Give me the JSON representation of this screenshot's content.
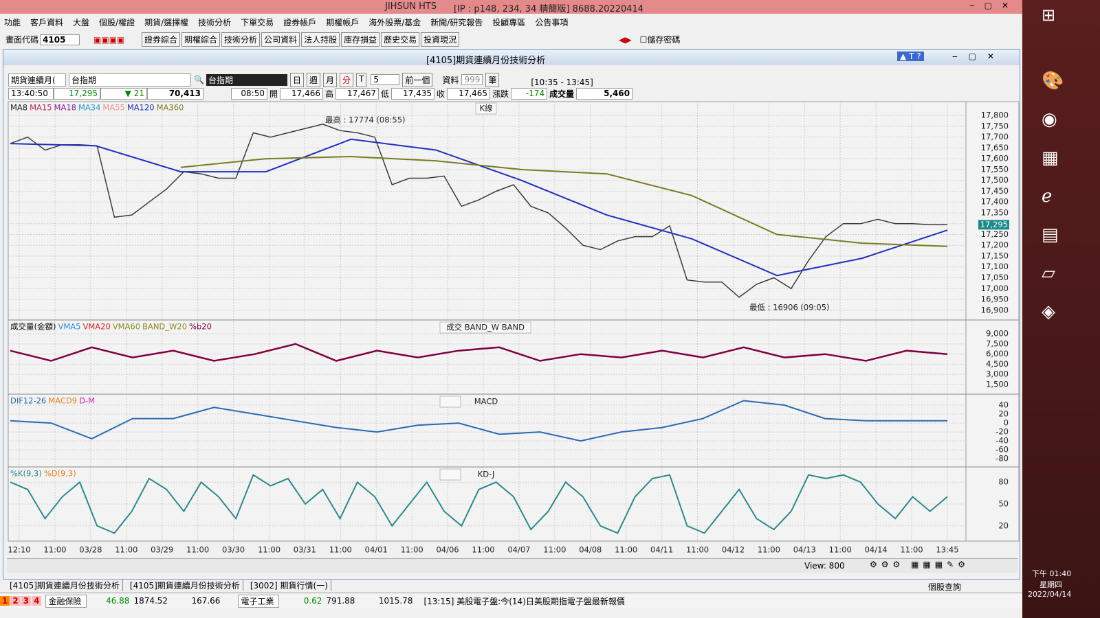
{
  "window": {
    "title": "JIHSUN HTS",
    "info": "[IP : p148, 234, 34 精簡版] 8688.20220414"
  },
  "menu": [
    "功能",
    "客戶資料",
    "大盤",
    "個股/權證",
    "期貨/選擇權",
    "技術分析",
    "下單交易",
    "證券帳戶",
    "期權帳戶",
    "海外股票/基金",
    "新聞/研究報告",
    "投顧專區",
    "公告事項"
  ],
  "toolbar": {
    "code_label": "畫面代碼",
    "code": "4105",
    "buttons": [
      "證券綜合",
      "期權綜合",
      "技術分析",
      "公司資料",
      "法人持股",
      "庫存損益",
      "歷史交易",
      "投資現況"
    ],
    "save_password": "儲存密碼"
  },
  "panel": {
    "title": "[4105]期貨連續月份技術分析",
    "selector": "期貨連續月(",
    "symbol": "台指期",
    "symbol_name": "台指期",
    "periods": [
      "日",
      "週",
      "月",
      "分",
      "T"
    ],
    "count": "5",
    "prev": "前一個",
    "data_label": "資料",
    "data_count": "999",
    "unit": "筆",
    "range": "[10:35 - 13:45]"
  },
  "quote": {
    "time": "13:40:50",
    "price": "17,295",
    "change": "21",
    "total": "70,413",
    "open_time": "08:50",
    "open_label": "開",
    "open": "17,466",
    "high_label": "高",
    "high": "17,467",
    "low_label": "低",
    "low": "17,435",
    "close_label": "收",
    "close": "17,465",
    "chg_label": "漲跌",
    "chg": "-174",
    "vol_label": "成交量",
    "vol": "5,460"
  },
  "chart_data": [
    {
      "type": "line",
      "title": "K線",
      "series": [
        {
          "name": "MA8",
          "color": "#222222"
        },
        {
          "name": "MA15",
          "color": "#c02060"
        },
        {
          "name": "MA18",
          "color": "#8a2090"
        },
        {
          "name": "MA34",
          "color": "#2a9ad0"
        },
        {
          "name": "MA55",
          "color": "#f08a8a"
        },
        {
          "name": "MA120",
          "color": "#2030c0",
          "values": [
            17670,
            17660,
            17540,
            17540,
            17690,
            17640,
            17500,
            17340,
            17230,
            17060,
            17140,
            17270
          ]
        },
        {
          "name": "MA360",
          "color": "#7a7a20",
          "values": [
            null,
            null,
            17560,
            17600,
            17610,
            17590,
            17550,
            17530,
            17430,
            17250,
            17210,
            17195
          ]
        }
      ],
      "price": {
        "color": "#3a3a3a",
        "values": [
          17670,
          17700,
          17640,
          17665,
          17665,
          17660,
          17330,
          17340,
          17400,
          17460,
          17540,
          17530,
          17510,
          17510,
          17720,
          17700,
          17720,
          17740,
          17760,
          17730,
          17720,
          17700,
          17480,
          17510,
          17510,
          17520,
          17380,
          17410,
          17450,
          17480,
          17380,
          17350,
          17280,
          17200,
          17180,
          17220,
          17240,
          17240,
          17290,
          17040,
          17030,
          17030,
          16960,
          17020,
          17050,
          17000,
          17130,
          17240,
          17300,
          17300,
          17320,
          17300,
          17300,
          17295,
          17295
        ]
      },
      "last_price": {
        "value": 17295,
        "label": "17,295"
      },
      "annotations": [
        "最高 : 17774 (08:55)",
        "最低 : 16906 (09:05)"
      ],
      "ylim": [
        16858,
        17864
      ],
      "yticks": [
        {
          "value": 16900,
          "label": "16,900"
        },
        {
          "value": 16950,
          "label": "16,950"
        },
        {
          "value": 17000,
          "label": "17,000"
        },
        {
          "value": 17050,
          "label": "17,050"
        },
        {
          "value": 17100,
          "label": "17,100"
        },
        {
          "value": 17150,
          "label": "17,150"
        },
        {
          "value": 17200,
          "label": "17,200"
        },
        {
          "value": 17250,
          "label": "17,250"
        },
        {
          "value": 17300,
          "label": "17,300"
        },
        {
          "value": 17350,
          "label": "17,350"
        },
        {
          "value": 17400,
          "label": "17,400"
        },
        {
          "value": 17450,
          "label": "17,450"
        },
        {
          "value": 17500,
          "label": "17,500"
        },
        {
          "value": 17550,
          "label": "17,550"
        },
        {
          "value": 17600,
          "label": "17,600"
        },
        {
          "value": 17650,
          "label": "17,650"
        },
        {
          "value": 17700,
          "label": "17,700"
        },
        {
          "value": 17750,
          "label": "17,750"
        },
        {
          "value": 17800,
          "label": "17,800"
        }
      ],
      "grid": true
    },
    {
      "type": "line",
      "title": "成交  BAND_W  BAND",
      "series": [
        {
          "name": "成交量(金額)",
          "color": "#000000"
        },
        {
          "name": "VMA5",
          "color": "#2a8ae0"
        },
        {
          "name": "VMA20",
          "color": "#e02020"
        },
        {
          "name": "VMA60",
          "color": "#8a8a20"
        },
        {
          "name": "BAND_W20",
          "color": "#8a8a20"
        },
        {
          "name": "%b20",
          "color": "#800040",
          "values": [
            6500,
            5000,
            7000,
            5500,
            6500,
            5000,
            6000,
            7500,
            5000,
            6500,
            5500,
            6500,
            7000,
            5000,
            6000,
            5500,
            6500,
            5500,
            7000,
            5500,
            6000,
            5000,
            6500,
            6000
          ]
        }
      ],
      "ylim": [
        267,
        10950
      ],
      "yticks": [
        {
          "value": 1500,
          "label": "1,500"
        },
        {
          "value": 3000,
          "label": "3,000"
        },
        {
          "value": 4500,
          "label": "4,500"
        },
        {
          "value": 6000,
          "label": "6,000"
        },
        {
          "value": 7500,
          "label": "7,500"
        },
        {
          "value": 9000,
          "label": "9,000"
        }
      ],
      "grid": true
    },
    {
      "type": "line",
      "title": "MACD",
      "series": [
        {
          "name": "DIF12-26",
          "color": "#2a6ab0",
          "values": [
            5,
            0,
            -35,
            10,
            10,
            35,
            20,
            5,
            -10,
            -20,
            -5,
            0,
            -25,
            -20,
            -40,
            -20,
            -10,
            10,
            50,
            40,
            10,
            5,
            5,
            5
          ]
        },
        {
          "name": "MACD9",
          "color": "#e8801a"
        },
        {
          "name": "D-M",
          "color": "#d020c0"
        }
      ],
      "ylim": [
        -95,
        63
      ],
      "yticks": [
        -80,
        -60,
        -40,
        -20,
        0,
        20,
        40
      ],
      "grid": true
    },
    {
      "type": "line",
      "title": "KD-J",
      "series": [
        {
          "name": "%K(9,3)",
          "color": "#2a8a8a",
          "values": [
            80,
            70,
            30,
            60,
            80,
            20,
            10,
            40,
            85,
            70,
            40,
            80,
            60,
            30,
            90,
            75,
            85,
            50,
            70,
            30,
            80,
            60,
            20,
            50,
            80,
            40,
            20,
            70,
            80,
            60,
            15,
            40,
            80,
            60,
            20,
            10,
            60,
            85,
            90,
            20,
            10,
            40,
            70,
            30,
            15,
            40,
            90,
            85,
            90,
            80,
            50,
            30,
            60,
            40,
            60
          ]
        },
        {
          "name": "%D(9,3)",
          "color": "#e8801a"
        }
      ],
      "ylim": [
        0,
        100
      ],
      "yticks": [
        20,
        50,
        80
      ],
      "grid": true
    }
  ],
  "x_labels": [
    "12:10",
    "11:00",
    "03/28",
    "11:00",
    "03/29",
    "11:00",
    "03/30",
    "11:00",
    "03/31",
    "11:00",
    "04/01",
    "11:00",
    "04/06",
    "11:00",
    "04/07",
    "11:00",
    "04/08",
    "11:00",
    "04/11",
    "11:00",
    "04/12",
    "11:00",
    "04/13",
    "11:00",
    "04/14",
    "11:00",
    "13:45"
  ],
  "view": "View: 800",
  "tabs": [
    "[4105]期貨連續月份技術分析",
    "[4105]期貨連續月份技術分析",
    "[3002]  期貨行情(一)"
  ],
  "stock_query": "個股查詢",
  "status": {
    "nums": [
      "1",
      "2",
      "3",
      "4"
    ],
    "sector1": "金融保險",
    "s1a": "46.88",
    "s1b": "1874.52",
    "s1c": "167.66",
    "sector2": "電子工業",
    "s2a": "0.62",
    "s2b": "791.88",
    "s2c": "1015.78",
    "news": "[13:15]  美股電子盤:今(14)日美股期指電子盤最新報價"
  },
  "taskbar": {
    "time": "下午 01:40",
    "weekday": "星期四",
    "date": "2022/04/14"
  }
}
